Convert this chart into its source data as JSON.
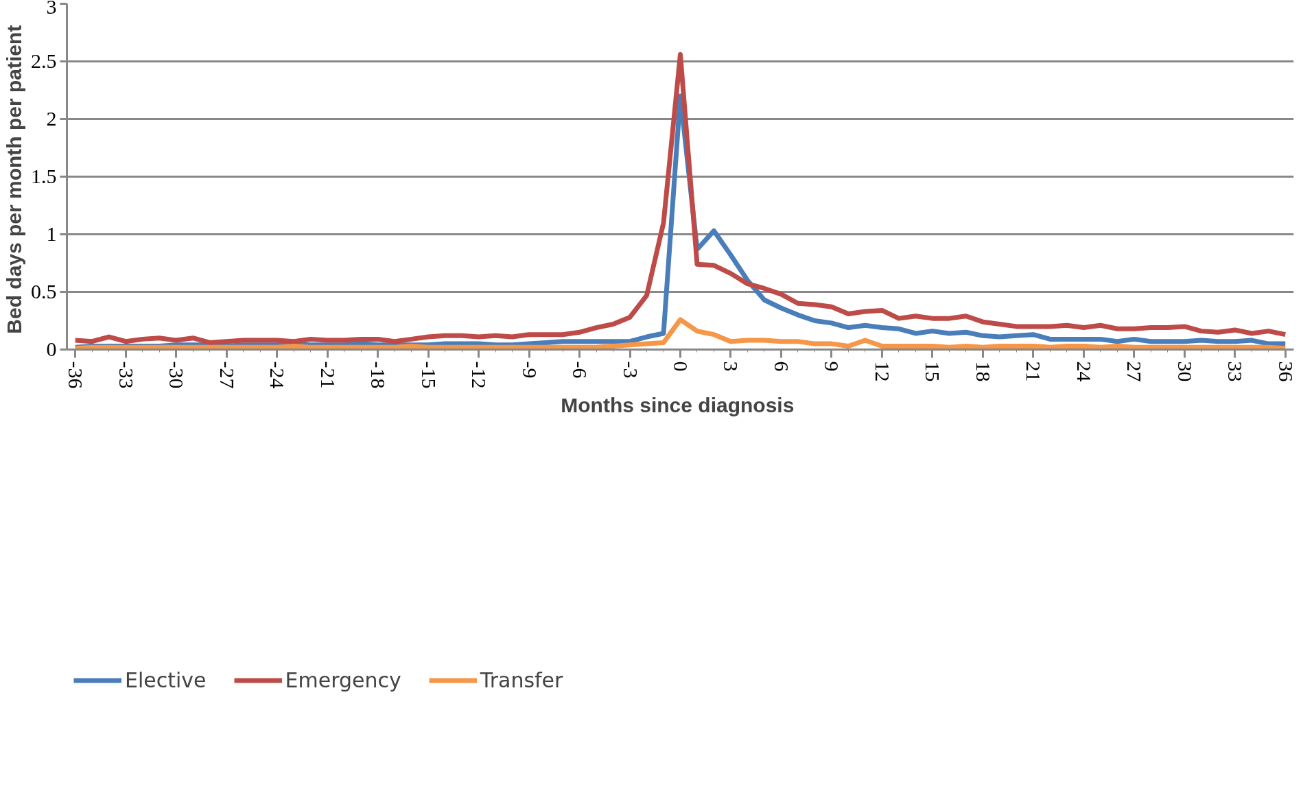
{
  "chart_data": {
    "type": "line",
    "xlabel": "Months since  diagnosis",
    "ylabel": "Bed days  per month per patient",
    "x": [
      -36,
      -35,
      -34,
      -33,
      -32,
      -31,
      -30,
      -29,
      -28,
      -27,
      -26,
      -25,
      -24,
      -23,
      -22,
      -21,
      -20,
      -19,
      -18,
      -17,
      -16,
      -15,
      -14,
      -13,
      -12,
      -11,
      -10,
      -9,
      -8,
      -7,
      -6,
      -5,
      -4,
      -3,
      -2,
      -1,
      0,
      1,
      2,
      3,
      4,
      5,
      6,
      7,
      8,
      9,
      10,
      11,
      12,
      13,
      14,
      15,
      16,
      17,
      18,
      19,
      20,
      21,
      22,
      23,
      24,
      25,
      26,
      27,
      28,
      29,
      30,
      31,
      32,
      33,
      34,
      35,
      36
    ],
    "series": [
      {
        "name": "Elective",
        "color": "#4a7ebb",
        "values": [
          0.02,
          0.03,
          0.03,
          0.03,
          0.03,
          0.03,
          0.04,
          0.04,
          0.04,
          0.03,
          0.04,
          0.04,
          0.04,
          0.05,
          0.04,
          0.04,
          0.04,
          0.05,
          0.04,
          0.04,
          0.04,
          0.04,
          0.05,
          0.05,
          0.05,
          0.04,
          0.04,
          0.05,
          0.06,
          0.07,
          0.07,
          0.07,
          0.07,
          0.07,
          0.11,
          0.14,
          2.2,
          0.87,
          1.03,
          0.82,
          0.6,
          0.43,
          0.36,
          0.3,
          0.25,
          0.23,
          0.19,
          0.21,
          0.19,
          0.18,
          0.14,
          0.16,
          0.14,
          0.15,
          0.12,
          0.11,
          0.12,
          0.13,
          0.09,
          0.09,
          0.09,
          0.09,
          0.07,
          0.09,
          0.07,
          0.07,
          0.07,
          0.08,
          0.07,
          0.07,
          0.08,
          0.05,
          0.05
        ]
      },
      {
        "name": "Emergency",
        "color": "#be4b48",
        "values": [
          0.08,
          0.07,
          0.11,
          0.07,
          0.09,
          0.1,
          0.08,
          0.1,
          0.06,
          0.07,
          0.08,
          0.08,
          0.08,
          0.07,
          0.09,
          0.08,
          0.08,
          0.09,
          0.09,
          0.07,
          0.09,
          0.11,
          0.12,
          0.12,
          0.11,
          0.12,
          0.11,
          0.13,
          0.13,
          0.13,
          0.15,
          0.19,
          0.22,
          0.28,
          0.47,
          1.1,
          2.56,
          0.74,
          0.73,
          0.66,
          0.57,
          0.53,
          0.48,
          0.4,
          0.39,
          0.37,
          0.31,
          0.33,
          0.34,
          0.27,
          0.29,
          0.27,
          0.27,
          0.29,
          0.24,
          0.22,
          0.2,
          0.2,
          0.2,
          0.21,
          0.19,
          0.21,
          0.18,
          0.18,
          0.19,
          0.19,
          0.2,
          0.16,
          0.15,
          0.17,
          0.14,
          0.16,
          0.13
        ]
      },
      {
        "name": "Transfer",
        "color": "#f79646",
        "values": [
          0.01,
          0.02,
          0.02,
          0.02,
          0.02,
          0.02,
          0.02,
          0.02,
          0.02,
          0.02,
          0.02,
          0.02,
          0.02,
          0.03,
          0.02,
          0.02,
          0.02,
          0.02,
          0.02,
          0.02,
          0.03,
          0.02,
          0.02,
          0.02,
          0.02,
          0.02,
          0.02,
          0.02,
          0.02,
          0.02,
          0.02,
          0.02,
          0.03,
          0.04,
          0.05,
          0.06,
          0.26,
          0.16,
          0.13,
          0.07,
          0.08,
          0.08,
          0.07,
          0.07,
          0.05,
          0.05,
          0.03,
          0.08,
          0.03,
          0.03,
          0.03,
          0.03,
          0.02,
          0.03,
          0.02,
          0.03,
          0.03,
          0.03,
          0.02,
          0.03,
          0.03,
          0.02,
          0.03,
          0.02,
          0.02,
          0.02,
          0.02,
          0.02,
          0.02,
          0.02,
          0.02,
          0.02,
          0.01
        ]
      }
    ],
    "xlim": [
      -36.5,
      36.5
    ],
    "xticks": [
      -36,
      -33,
      -30,
      -27,
      -24,
      -21,
      -18,
      -15,
      -12,
      -9,
      -6,
      -3,
      0,
      3,
      6,
      9,
      12,
      15,
      18,
      21,
      24,
      27,
      30,
      33,
      36
    ],
    "ylim": [
      0,
      3
    ],
    "yticks": [
      0,
      0.5,
      1,
      1.5,
      2,
      2.5,
      3
    ],
    "grid": "y",
    "legend": "bottom left",
    "marker": "none",
    "line_style": "solid"
  }
}
